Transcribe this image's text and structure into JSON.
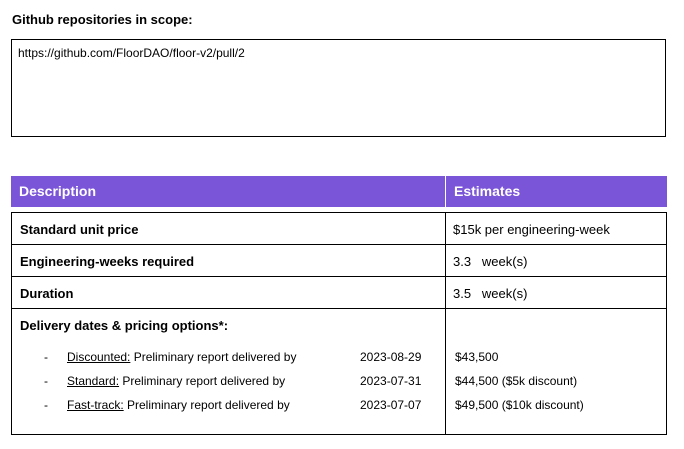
{
  "repositories": {
    "heading": "Github repositories in scope:",
    "url": "https://github.com/FloorDAO/floor-v2/pull/2"
  },
  "table": {
    "headers": {
      "description": "Description",
      "estimates": "Estimates"
    },
    "unit_price": {
      "label": "Standard unit price",
      "value": "$15k per engineering-week"
    },
    "eng_weeks": {
      "label": "Engineering-weeks required",
      "value": "3.3   week(s)"
    },
    "duration": {
      "label": "Duration",
      "value": "3.5   week(s)"
    },
    "delivery": {
      "label": "Delivery dates & pricing options*:",
      "options": [
        {
          "bullet": "-",
          "name": "Discounted:",
          "text": " Preliminary report delivered by",
          "date": "2023-08-29",
          "price": "$43,500"
        },
        {
          "bullet": "-",
          "name": "Standard:",
          "text": " Preliminary report delivered by",
          "date": "2023-07-31",
          "price": "$44,500 ($5k discount)"
        },
        {
          "bullet": "-",
          "name": "Fast-track:",
          "text": " Preliminary report delivered by",
          "date": "2023-07-07",
          "price": "$49,500 ($10k discount)"
        }
      ]
    }
  },
  "colors": {
    "header_bg": "#7b55d8",
    "header_text": "#ffffff"
  }
}
